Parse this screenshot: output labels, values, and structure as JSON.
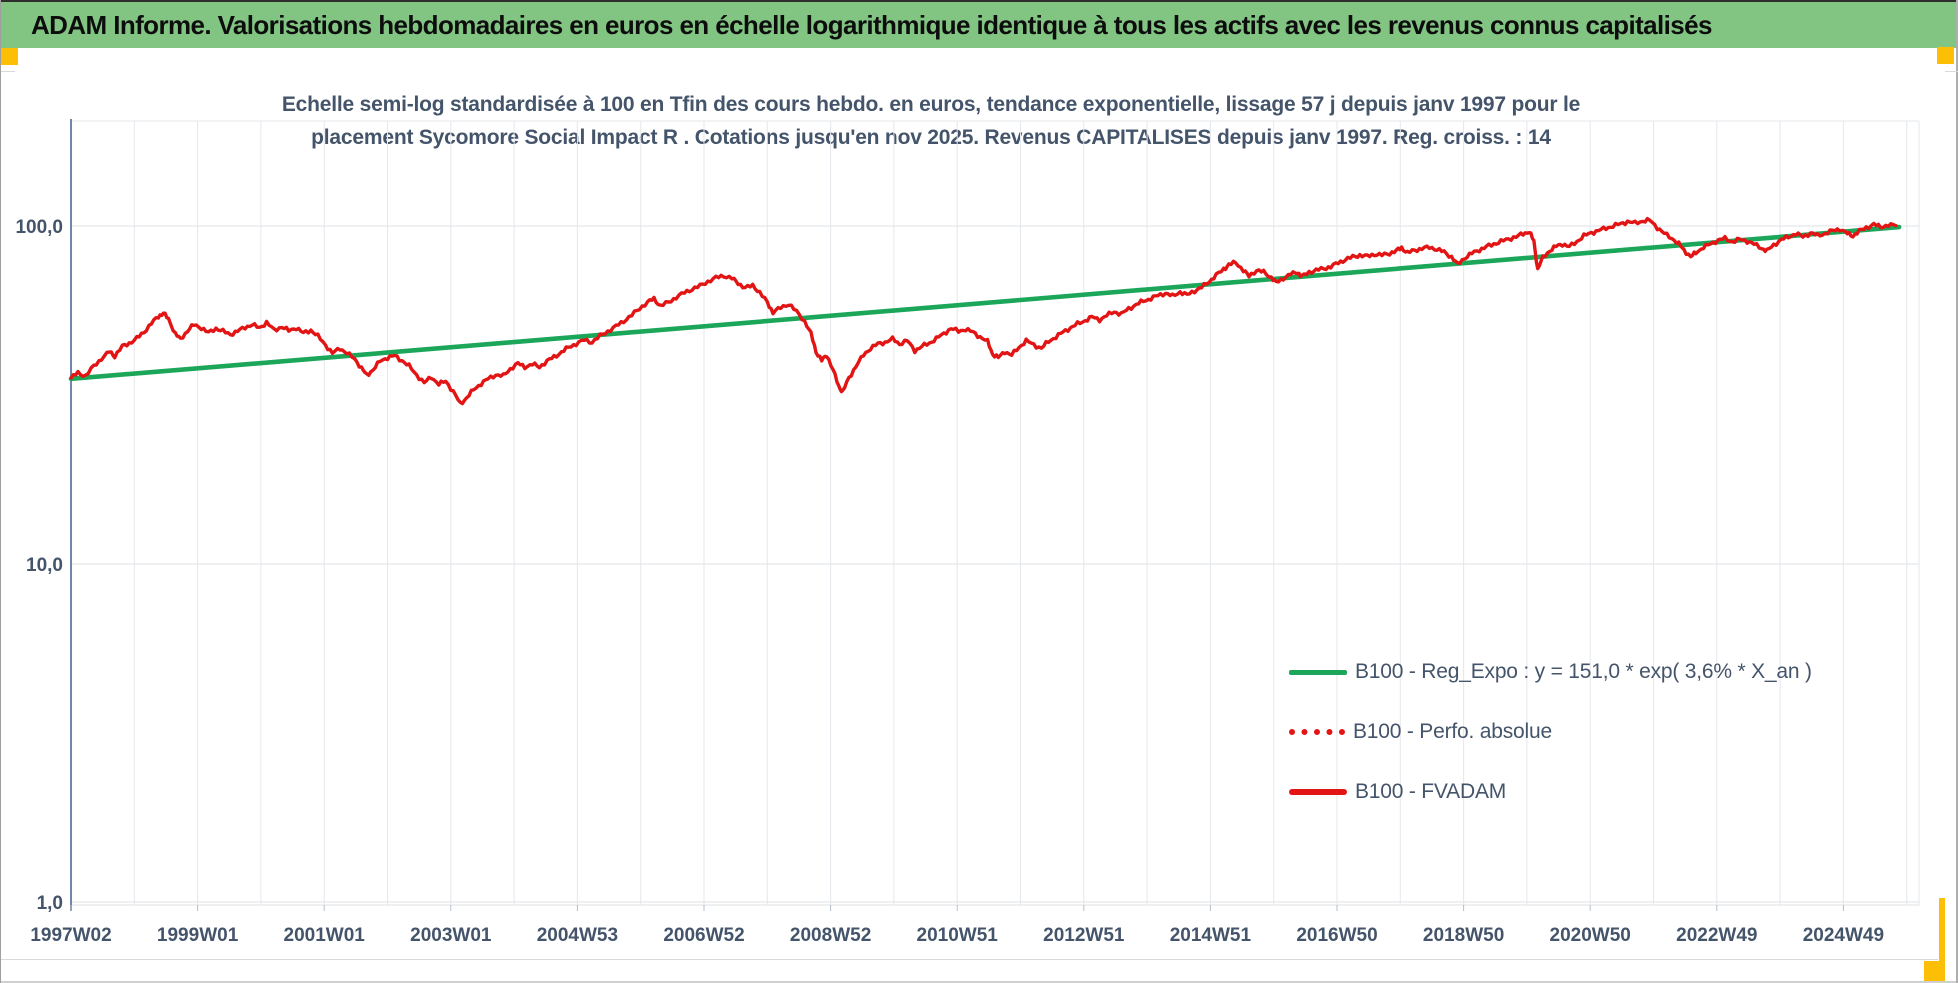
{
  "header": {
    "title": "ADAM Informe. Valorisations hebdomadaires en euros en échelle logarithmique identique à tous les actifs avec les revenus connus capitalisés"
  },
  "chart": {
    "title_line1": "Echelle semi-log standardisée à 100 en Tfin des cours hebdo. en euros, tendance exponentielle, lissage 57 j depuis janv 1997 pour le",
    "title_line2": "placement Sycomore Social Impact R . Cotations jusqu'en nov 2025. Revenus CAPITALISES depuis janv 1997. Reg. croiss. : 14"
  },
  "colors": {
    "header_green": "#82C583",
    "trend_green": "#1CA65A",
    "series_red": "#E21414",
    "text_slate": "#44546A",
    "gridline": "#E4E7EB",
    "axis_blue": "#7087AA",
    "marker_amber": "#FCBF05"
  },
  "chart_data": {
    "type": "line",
    "title": "Echelle semi-log standardisée à 100 en Tfin des cours hebdo. en euros, tendance exponentielle, lissage 57 j depuis janv 1997 pour le placement Sycomore Social Impact R . Cotations jusqu'en nov 2025. Revenus CAPITALISES depuis janv 1997. Reg. croiss. : 14",
    "x_axis": {
      "tick_labels": [
        "1997W02",
        "1999W01",
        "2001W01",
        "2003W01",
        "2004W53",
        "2006W52",
        "2008W52",
        "2010W51",
        "2012W51",
        "2014W51",
        "2016W50",
        "2018W50",
        "2020W50",
        "2022W49",
        "2024W49"
      ],
      "tick_interval": "104 weeks",
      "gridline_interval": "1 year",
      "range_years": [
        1997.04,
        2026.2
      ]
    },
    "y_axis": {
      "scale": "log10",
      "tick_labels": [
        "100,0",
        "10,0",
        "1,0"
      ],
      "tick_values": [
        100,
        10,
        1
      ],
      "range_approx": [
        1,
        200
      ]
    },
    "legend_position": "inside-right-bottom",
    "grid": true,
    "series": [
      {
        "name": "B100 - Reg_Expo : y = 151,0 * exp( 3,6% *  X_an )",
        "type": "exponential_trend",
        "style": "solid",
        "color": "#1CA65A",
        "growth_rate_per_year": 0.036,
        "points": [
          [
            1997.04,
            35.3
          ],
          [
            2025.92,
            99.3
          ]
        ]
      },
      {
        "name": "B100 - Perfo. absolue",
        "type": "line",
        "style": "dotted",
        "color": "#E21414",
        "note": "coincides with the B100 - FVADAM curve (hidden beneath it)"
      },
      {
        "name": "B100 - FVADAM",
        "type": "line",
        "style": "solid",
        "color": "#E21414",
        "points": [
          [
            1997.04,
            35.5
          ],
          [
            1997.15,
            36.8
          ],
          [
            1997.27,
            36.0
          ],
          [
            1997.4,
            38.5
          ],
          [
            1997.52,
            40.5
          ],
          [
            1997.65,
            42.5
          ],
          [
            1997.73,
            41.2
          ],
          [
            1997.85,
            44.0
          ],
          [
            1997.96,
            45.0
          ],
          [
            1998.08,
            46.5
          ],
          [
            1998.19,
            48.5
          ],
          [
            1998.31,
            51.5
          ],
          [
            1998.42,
            54.0
          ],
          [
            1998.5,
            55.3
          ],
          [
            1998.58,
            53.0
          ],
          [
            1998.69,
            48.0
          ],
          [
            1998.77,
            46.2
          ],
          [
            1998.88,
            49.0
          ],
          [
            1998.98,
            51.0
          ],
          [
            1999.1,
            50.0
          ],
          [
            1999.21,
            48.3
          ],
          [
            1999.33,
            49.8
          ],
          [
            1999.44,
            48.8
          ],
          [
            1999.56,
            47.8
          ],
          [
            1999.67,
            48.8
          ],
          [
            1999.79,
            50.2
          ],
          [
            1999.9,
            51.0
          ],
          [
            2000.02,
            50.0
          ],
          [
            2000.13,
            51.8
          ],
          [
            2000.25,
            49.2
          ],
          [
            2000.37,
            50.3
          ],
          [
            2000.48,
            49.0
          ],
          [
            2000.6,
            50.0
          ],
          [
            2000.71,
            48.2
          ],
          [
            2000.83,
            49.2
          ],
          [
            2000.94,
            47.2
          ],
          [
            2001.06,
            44.5
          ],
          [
            2001.17,
            42.0
          ],
          [
            2001.29,
            43.5
          ],
          [
            2001.4,
            42.0
          ],
          [
            2001.52,
            40.5
          ],
          [
            2001.63,
            38.0
          ],
          [
            2001.71,
            36.2
          ],
          [
            2001.81,
            37.5
          ],
          [
            2001.92,
            39.8
          ],
          [
            2002.04,
            40.8
          ],
          [
            2002.15,
            41.3
          ],
          [
            2002.27,
            40.0
          ],
          [
            2002.38,
            38.5
          ],
          [
            2002.5,
            36.3
          ],
          [
            2002.62,
            34.3
          ],
          [
            2002.73,
            35.8
          ],
          [
            2002.85,
            34.0
          ],
          [
            2002.96,
            34.8
          ],
          [
            2003.08,
            32.3
          ],
          [
            2003.19,
            29.8
          ],
          [
            2003.29,
            31.0
          ],
          [
            2003.4,
            32.8
          ],
          [
            2003.52,
            34.2
          ],
          [
            2003.63,
            35.3
          ],
          [
            2003.75,
            36.3
          ],
          [
            2003.87,
            36.0
          ],
          [
            2003.98,
            37.8
          ],
          [
            2004.1,
            39.2
          ],
          [
            2004.21,
            38.3
          ],
          [
            2004.33,
            39.0
          ],
          [
            2004.44,
            38.3
          ],
          [
            2004.56,
            39.8
          ],
          [
            2004.67,
            41.0
          ],
          [
            2004.79,
            42.3
          ],
          [
            2004.9,
            43.8
          ],
          [
            2005.02,
            44.8
          ],
          [
            2005.15,
            46.0
          ],
          [
            2005.27,
            45.3
          ],
          [
            2005.4,
            47.3
          ],
          [
            2005.52,
            48.8
          ],
          [
            2005.65,
            50.5
          ],
          [
            2005.77,
            52.3
          ],
          [
            2005.9,
            54.5
          ],
          [
            2006.02,
            57.0
          ],
          [
            2006.15,
            59.5
          ],
          [
            2006.25,
            61.0
          ],
          [
            2006.35,
            58.0
          ],
          [
            2006.48,
            59.5
          ],
          [
            2006.6,
            61.5
          ],
          [
            2006.73,
            63.5
          ],
          [
            2006.85,
            65.0
          ],
          [
            2006.98,
            66.5
          ],
          [
            2007.1,
            68.5
          ],
          [
            2007.23,
            70.3
          ],
          [
            2007.35,
            71.3
          ],
          [
            2007.48,
            70.0
          ],
          [
            2007.58,
            67.8
          ],
          [
            2007.69,
            65.5
          ],
          [
            2007.81,
            66.8
          ],
          [
            2007.92,
            63.5
          ],
          [
            2008.04,
            59.5
          ],
          [
            2008.13,
            55.5
          ],
          [
            2008.25,
            57.3
          ],
          [
            2008.38,
            58.8
          ],
          [
            2008.5,
            55.8
          ],
          [
            2008.63,
            52.3
          ],
          [
            2008.73,
            48.0
          ],
          [
            2008.81,
            42.5
          ],
          [
            2008.9,
            40.0
          ],
          [
            2008.98,
            41.5
          ],
          [
            2009.08,
            37.5
          ],
          [
            2009.17,
            33.5
          ],
          [
            2009.23,
            32.3
          ],
          [
            2009.33,
            35.5
          ],
          [
            2009.44,
            38.5
          ],
          [
            2009.56,
            41.5
          ],
          [
            2009.67,
            43.5
          ],
          [
            2009.79,
            44.8
          ],
          [
            2009.9,
            45.3
          ],
          [
            2010.02,
            46.3
          ],
          [
            2010.13,
            44.8
          ],
          [
            2010.25,
            45.8
          ],
          [
            2010.37,
            42.8
          ],
          [
            2010.48,
            44.0
          ],
          [
            2010.6,
            45.0
          ],
          [
            2010.71,
            46.5
          ],
          [
            2010.83,
            48.0
          ],
          [
            2010.94,
            49.8
          ],
          [
            2011.06,
            48.8
          ],
          [
            2011.17,
            49.5
          ],
          [
            2011.29,
            48.5
          ],
          [
            2011.4,
            47.0
          ],
          [
            2011.52,
            45.5
          ],
          [
            2011.6,
            41.8
          ],
          [
            2011.69,
            40.8
          ],
          [
            2011.79,
            42.5
          ],
          [
            2011.9,
            41.5
          ],
          [
            2012.02,
            43.8
          ],
          [
            2012.13,
            45.8
          ],
          [
            2012.25,
            44.5
          ],
          [
            2012.37,
            43.5
          ],
          [
            2012.48,
            45.5
          ],
          [
            2012.6,
            47.0
          ],
          [
            2012.71,
            48.5
          ],
          [
            2012.83,
            50.0
          ],
          [
            2012.94,
            51.3
          ],
          [
            2013.06,
            52.5
          ],
          [
            2013.17,
            53.8
          ],
          [
            2013.29,
            52.8
          ],
          [
            2013.4,
            54.3
          ],
          [
            2013.52,
            55.8
          ],
          [
            2013.63,
            54.8
          ],
          [
            2013.75,
            57.0
          ],
          [
            2013.87,
            58.5
          ],
          [
            2013.98,
            60.0
          ],
          [
            2014.1,
            61.0
          ],
          [
            2014.21,
            62.3
          ],
          [
            2014.33,
            63.3
          ],
          [
            2014.44,
            62.0
          ],
          [
            2014.56,
            63.8
          ],
          [
            2014.67,
            62.5
          ],
          [
            2014.79,
            64.3
          ],
          [
            2014.9,
            65.8
          ],
          [
            2015.02,
            68.5
          ],
          [
            2015.13,
            71.5
          ],
          [
            2015.25,
            74.5
          ],
          [
            2015.33,
            76.8
          ],
          [
            2015.44,
            78.0
          ],
          [
            2015.56,
            74.0
          ],
          [
            2015.65,
            71.0
          ],
          [
            2015.77,
            74.0
          ],
          [
            2015.88,
            73.0
          ],
          [
            2016.0,
            70.5
          ],
          [
            2016.08,
            68.0
          ],
          [
            2016.19,
            70.0
          ],
          [
            2016.31,
            72.0
          ],
          [
            2016.42,
            73.0
          ],
          [
            2016.48,
            70.8
          ],
          [
            2016.6,
            73.0
          ],
          [
            2016.71,
            74.0
          ],
          [
            2016.83,
            74.8
          ],
          [
            2016.94,
            75.8
          ],
          [
            2017.06,
            77.8
          ],
          [
            2017.17,
            79.5
          ],
          [
            2017.29,
            81.0
          ],
          [
            2017.4,
            82.0
          ],
          [
            2017.52,
            81.3
          ],
          [
            2017.63,
            82.5
          ],
          [
            2017.75,
            82.0
          ],
          [
            2017.87,
            83.0
          ],
          [
            2017.98,
            84.5
          ],
          [
            2018.06,
            86.3
          ],
          [
            2018.15,
            83.3
          ],
          [
            2018.27,
            84.8
          ],
          [
            2018.38,
            85.8
          ],
          [
            2018.5,
            86.5
          ],
          [
            2018.62,
            85.3
          ],
          [
            2018.73,
            83.8
          ],
          [
            2018.85,
            81.0
          ],
          [
            2018.94,
            77.0
          ],
          [
            2019.06,
            80.5
          ],
          [
            2019.17,
            83.0
          ],
          [
            2019.29,
            85.0
          ],
          [
            2019.4,
            86.8
          ],
          [
            2019.52,
            88.5
          ],
          [
            2019.63,
            90.0
          ],
          [
            2019.75,
            91.5
          ],
          [
            2019.87,
            93.0
          ],
          [
            2019.98,
            94.8
          ],
          [
            2020.08,
            96.3
          ],
          [
            2020.15,
            90.0
          ],
          [
            2020.21,
            74.5
          ],
          [
            2020.29,
            80.5
          ],
          [
            2020.4,
            84.5
          ],
          [
            2020.5,
            87.0
          ],
          [
            2020.6,
            88.5
          ],
          [
            2020.71,
            86.8
          ],
          [
            2020.83,
            90.0
          ],
          [
            2020.94,
            93.5
          ],
          [
            2021.06,
            95.5
          ],
          [
            2021.17,
            97.0
          ],
          [
            2021.29,
            98.5
          ],
          [
            2021.4,
            100.0
          ],
          [
            2021.52,
            101.5
          ],
          [
            2021.63,
            103.0
          ],
          [
            2021.75,
            102.0
          ],
          [
            2021.87,
            103.5
          ],
          [
            2021.98,
            104.0
          ],
          [
            2022.1,
            99.0
          ],
          [
            2022.21,
            95.0
          ],
          [
            2022.33,
            92.0
          ],
          [
            2022.44,
            88.5
          ],
          [
            2022.52,
            85.0
          ],
          [
            2022.63,
            81.0
          ],
          [
            2022.71,
            83.5
          ],
          [
            2022.83,
            86.5
          ],
          [
            2022.94,
            88.5
          ],
          [
            2023.06,
            90.8
          ],
          [
            2023.17,
            91.8
          ],
          [
            2023.29,
            89.8
          ],
          [
            2023.4,
            91.3
          ],
          [
            2023.52,
            90.3
          ],
          [
            2023.63,
            88.3
          ],
          [
            2023.75,
            86.0
          ],
          [
            2023.83,
            84.3
          ],
          [
            2023.94,
            88.0
          ],
          [
            2024.06,
            91.0
          ],
          [
            2024.17,
            93.0
          ],
          [
            2024.29,
            94.8
          ],
          [
            2024.4,
            93.0
          ],
          [
            2024.52,
            95.3
          ],
          [
            2024.63,
            93.8
          ],
          [
            2024.75,
            95.0
          ],
          [
            2024.87,
            96.8
          ],
          [
            2024.98,
            98.0
          ],
          [
            2025.1,
            95.0
          ],
          [
            2025.19,
            93.5
          ],
          [
            2025.29,
            96.5
          ],
          [
            2025.4,
            99.0
          ],
          [
            2025.52,
            101.0
          ],
          [
            2025.63,
            99.5
          ],
          [
            2025.75,
            100.5
          ],
          [
            2025.87,
            100.3
          ]
        ]
      }
    ]
  }
}
